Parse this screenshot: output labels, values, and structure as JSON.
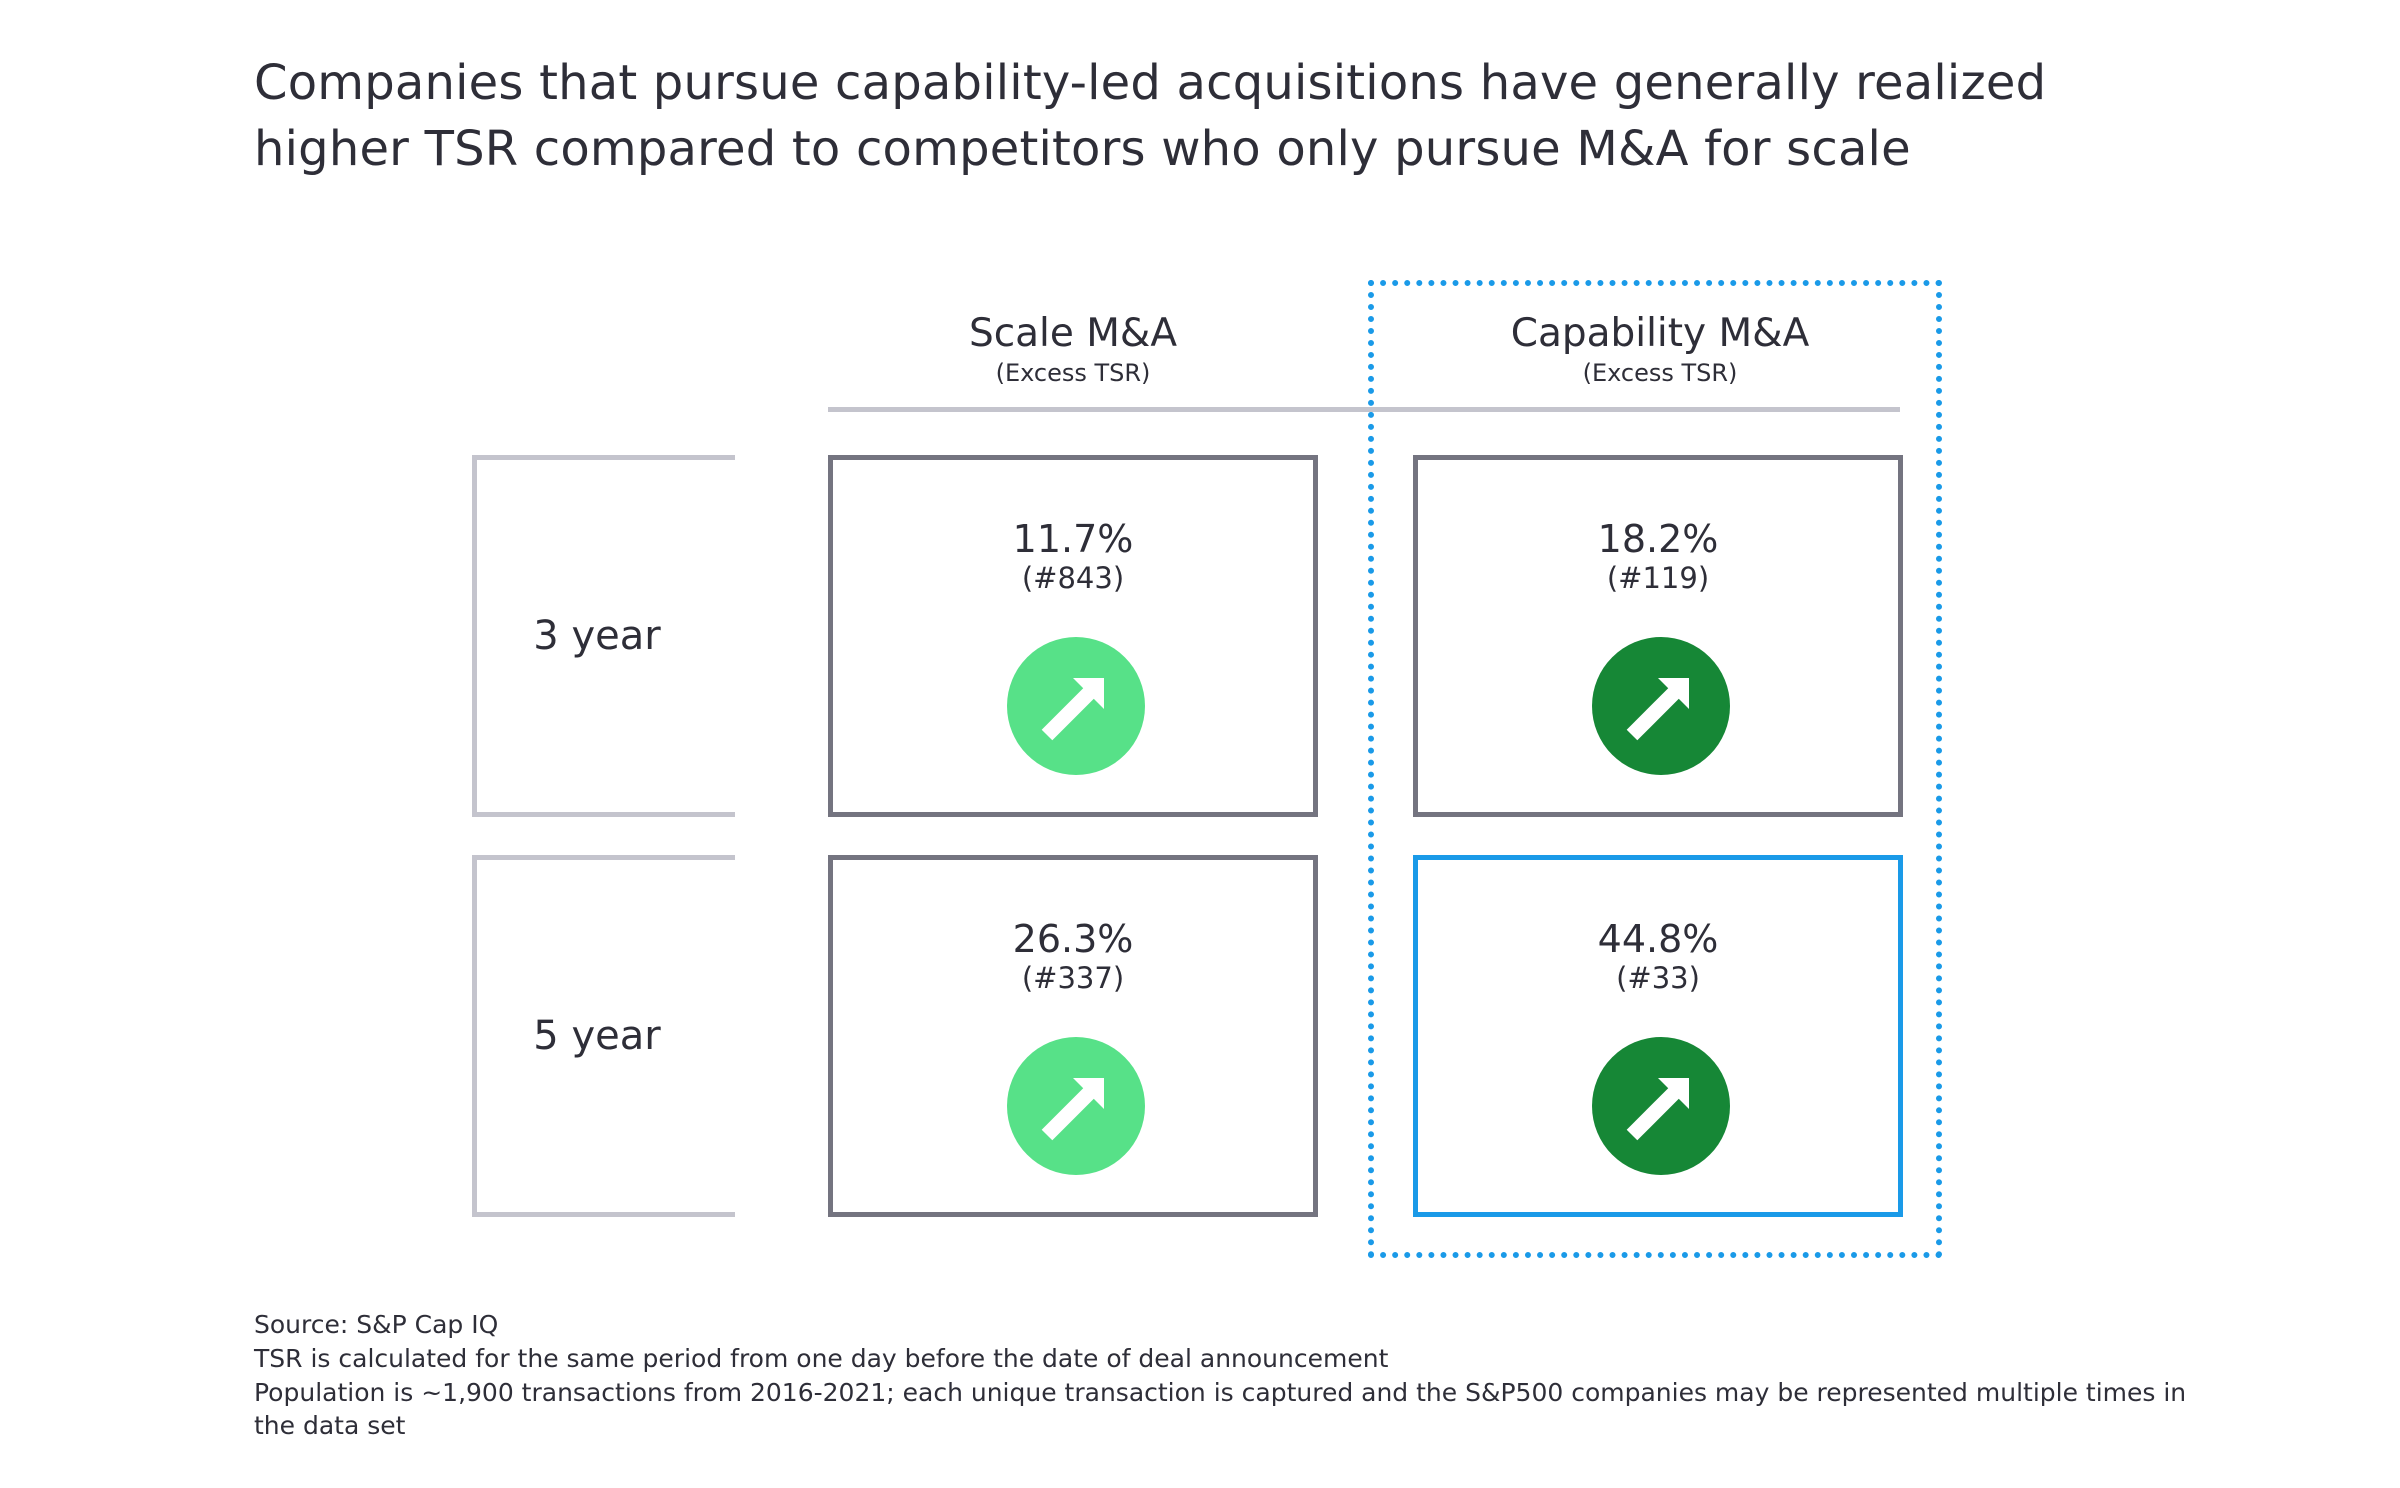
{
  "title": {
    "line1": "Companies that pursue capability-led acquisitions have generally realized",
    "line2": "higher TSR compared to competitors who only pursue M&A for scale"
  },
  "columns": [
    {
      "label": "Scale M&A",
      "sublabel": "(Excess TSR)"
    },
    {
      "label": "Capability M&A",
      "sublabel": "(Excess TSR)"
    }
  ],
  "rows": [
    {
      "label": "3 year"
    },
    {
      "label": "5 year"
    }
  ],
  "cells": {
    "scale_3yr": {
      "value": "11.7%",
      "count": "(#843)",
      "icon": "arrow-up-right-icon",
      "color": "#57e188"
    },
    "capability_3yr": {
      "value": "18.2%",
      "count": "(#119)",
      "icon": "arrow-up-right-icon",
      "color": "#168736"
    },
    "scale_5yr": {
      "value": "26.3%",
      "count": "(#337)",
      "icon": "arrow-up-right-icon",
      "color": "#57e188"
    },
    "capability_5yr": {
      "value": "44.8%",
      "count": "(#33)",
      "icon": "arrow-up-right-icon",
      "color": "#168736"
    }
  },
  "colors": {
    "highlight": "#1a9ae8",
    "cell_border": "#747480",
    "label_border": "#c4c4cd",
    "text": "#2e2e38"
  },
  "footnotes": {
    "source": "Source:  S&P Cap IQ",
    "note1": "TSR is calculated for the same period from one day before the date of deal announcement",
    "note2": "Population is ~1,900 transactions from 2016-2021; each unique transaction is captured and the S&P500 companies may be represented multiple times in the data set"
  }
}
